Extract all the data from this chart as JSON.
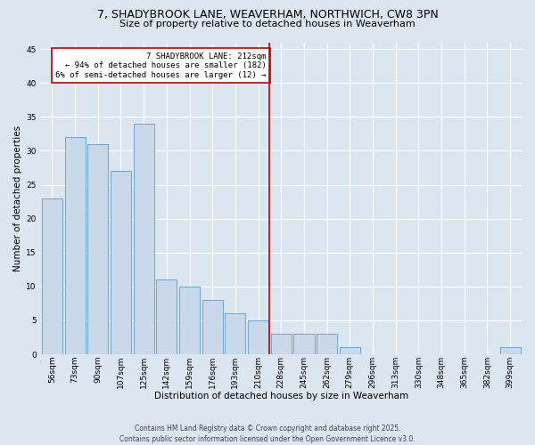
{
  "title1": "7, SHADYBROOK LANE, WEAVERHAM, NORTHWICH, CW8 3PN",
  "title2": "Size of property relative to detached houses in Weaverham",
  "xlabel": "Distribution of detached houses by size in Weaverham",
  "ylabel": "Number of detached properties",
  "footnote": "Contains HM Land Registry data © Crown copyright and database right 2025.\nContains public sector information licensed under the Open Government Licence v3.0.",
  "categories": [
    "56sqm",
    "73sqm",
    "90sqm",
    "107sqm",
    "125sqm",
    "142sqm",
    "159sqm",
    "176sqm",
    "193sqm",
    "210sqm",
    "228sqm",
    "245sqm",
    "262sqm",
    "279sqm",
    "296sqm",
    "313sqm",
    "330sqm",
    "348sqm",
    "365sqm",
    "382sqm",
    "399sqm"
  ],
  "values": [
    23,
    32,
    31,
    27,
    34,
    11,
    10,
    8,
    6,
    5,
    3,
    3,
    3,
    1,
    0,
    0,
    0,
    0,
    0,
    0,
    1
  ],
  "bar_color": "#c9d9ea",
  "bar_edge_color": "#5b9bd5",
  "vline_color": "#c00000",
  "annotation_box_color": "#c00000",
  "vline_label": "7 SHADYBROOK LANE: 212sqm",
  "vline_pct_left": "← 94% of detached houses are smaller (182)",
  "vline_pct_right": "6% of semi-detached houses are larger (12) →",
  "ylim": [
    0,
    46
  ],
  "yticks": [
    0,
    5,
    10,
    15,
    20,
    25,
    30,
    35,
    40,
    45
  ],
  "background_color": "#dce6f1",
  "grid_color": "#ffffff",
  "title1_fontsize": 9,
  "title2_fontsize": 8,
  "xlabel_fontsize": 7.5,
  "ylabel_fontsize": 7.5,
  "tick_fontsize": 6.5,
  "annotation_fontsize": 6.5,
  "footnote_fontsize": 5.5
}
